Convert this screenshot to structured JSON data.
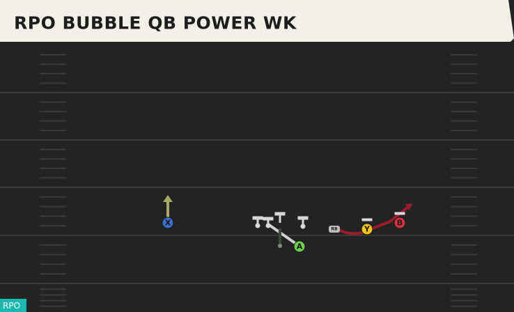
{
  "header": {
    "title": "RPO BUBBLE QB POWER WK"
  },
  "players": [
    {
      "label": "X"
    },
    {
      "label": "A"
    },
    {
      "label": "Y"
    },
    {
      "label": "B"
    },
    {
      "label": "RB"
    }
  ],
  "footer": {
    "tag": "RPO"
  }
}
